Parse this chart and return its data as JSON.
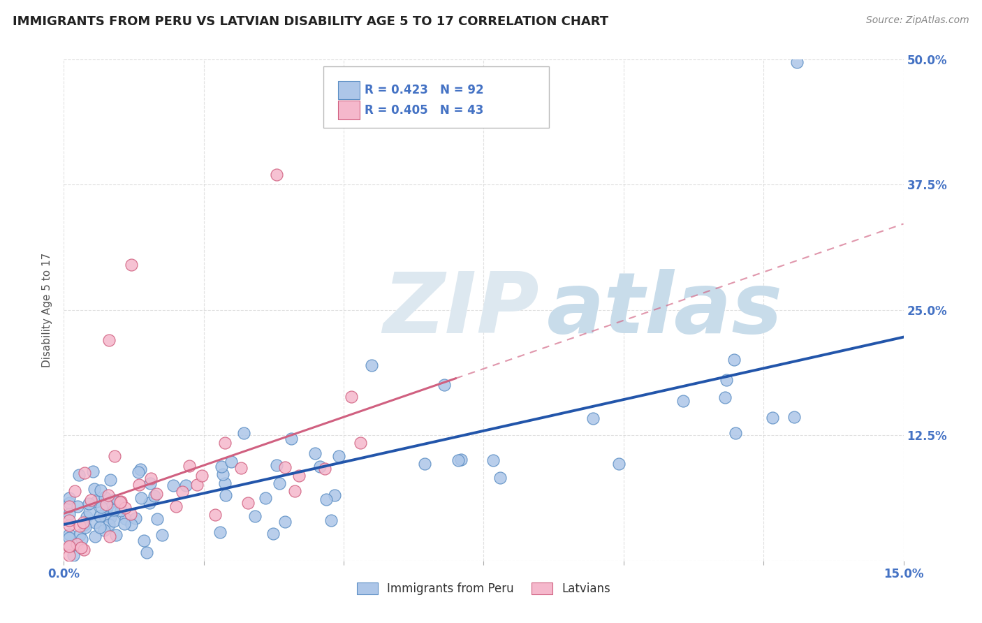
{
  "title": "IMMIGRANTS FROM PERU VS LATVIAN DISABILITY AGE 5 TO 17 CORRELATION CHART",
  "source": "Source: ZipAtlas.com",
  "ylabel": "Disability Age 5 to 17",
  "xlim": [
    0.0,
    0.15
  ],
  "ylim": [
    0.0,
    0.5
  ],
  "xtick_positions": [
    0.0,
    0.025,
    0.05,
    0.075,
    0.1,
    0.125,
    0.15
  ],
  "xtick_labels": [
    "0.0%",
    "",
    "",
    "",
    "",
    "",
    "15.0%"
  ],
  "ytick_positions": [
    0.0,
    0.125,
    0.25,
    0.375,
    0.5
  ],
  "ytick_labels": [
    "",
    "12.5%",
    "25.0%",
    "37.5%",
    "50.0%"
  ],
  "series1_color": "#adc6e8",
  "series1_edge": "#5b8ec4",
  "series1_line_color": "#2255aa",
  "series1_label": "Immigrants from Peru",
  "series1_R": 0.423,
  "series1_N": 92,
  "series2_color": "#f5b8cc",
  "series2_edge": "#d06080",
  "series2_line_color": "#d06080",
  "series2_label": "Latvians",
  "series2_R": 0.405,
  "series2_N": 43,
  "background_color": "#ffffff",
  "grid_color": "#cccccc",
  "tick_color": "#4472c4",
  "title_color": "#222222",
  "source_color": "#888888",
  "legend_R_N_color": "#4472c4",
  "watermark_zip_color": "#dde8f0",
  "watermark_atlas_color": "#c8dcea"
}
